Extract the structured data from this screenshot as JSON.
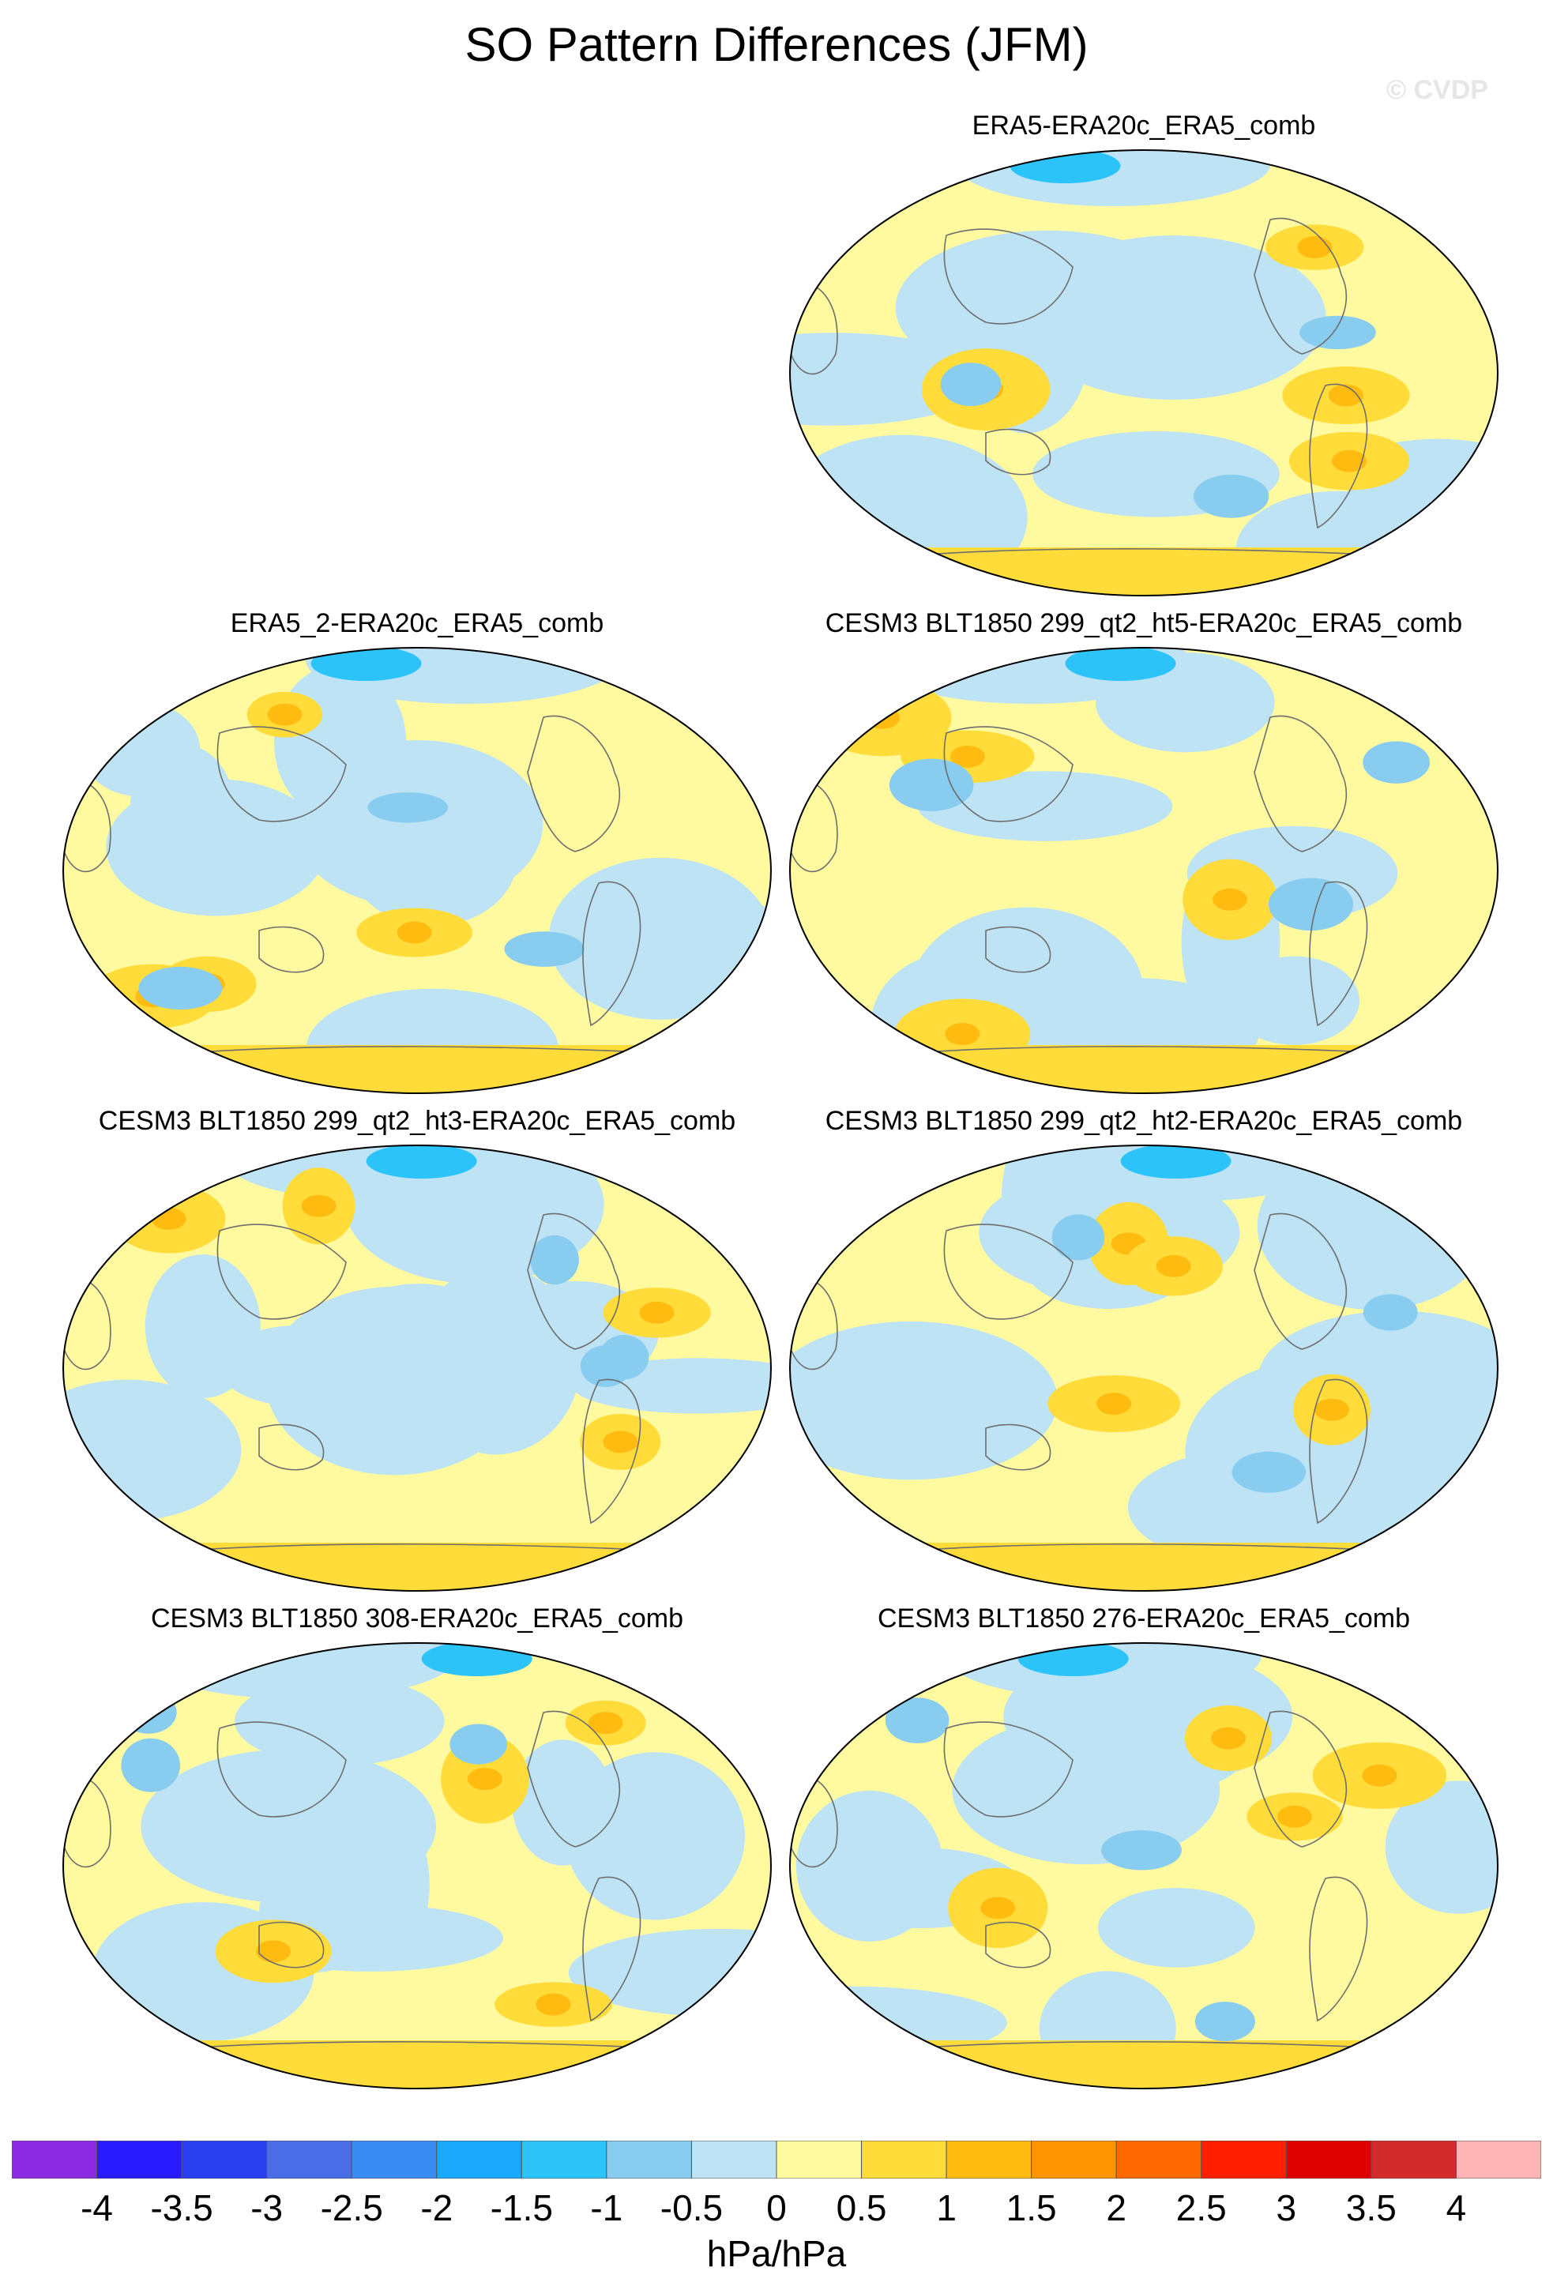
{
  "title": "SO Pattern Differences (JFM)",
  "copyright": "© CVDP",
  "panels": [
    {
      "title": "ERA5-ERA20c_ERA5_comb",
      "seed": 1
    },
    {
      "title": "ERA5_2-ERA20c_ERA5_comb",
      "seed": 2
    },
    {
      "title": "CESM3 BLT1850 299_qt2_ht5-ERA20c_ERA5_comb",
      "seed": 3
    },
    {
      "title": "CESM3 BLT1850 299_qt2_ht3-ERA20c_ERA5_comb",
      "seed": 4
    },
    {
      "title": "CESM3 BLT1850 299_qt2_ht2-ERA20c_ERA5_comb",
      "seed": 5
    },
    {
      "title": "CESM3 BLT1850 308-ERA20c_ERA5_comb",
      "seed": 6
    },
    {
      "title": "CESM3 BLT1850 276-ERA20c_ERA5_comb",
      "seed": 7
    }
  ],
  "colorbar": {
    "colors": [
      "#8a2be2",
      "#2a1aff",
      "#2a3ff0",
      "#4a6ee8",
      "#3a8cf5",
      "#1aa8fa",
      "#2cc4f8",
      "#88ccf0",
      "#bde3f5",
      "#fff9a0",
      "#ffdc3a",
      "#ffbb10",
      "#ff9400",
      "#ff6a00",
      "#ff1e00",
      "#e00000",
      "#d22b2b",
      "#ffb5b5"
    ],
    "labels": [
      "-4",
      "-3.5",
      "-3",
      "-2.5",
      "-2",
      "-1.5",
      "-1",
      "-0.5",
      "0",
      "0.5",
      "1",
      "1.5",
      "2",
      "2.5",
      "3",
      "3.5",
      "4"
    ],
    "units": "hPa/hPa"
  }
}
